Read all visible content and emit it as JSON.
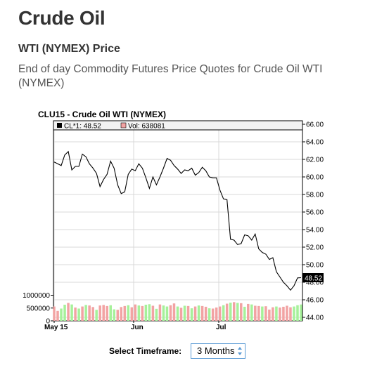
{
  "page": {
    "title": "Crude Oil",
    "subtitle": "WTI (NYMEX) Price",
    "description": "End of day Commodity Futures Price Quotes for Crude Oil WTI (NYMEX)"
  },
  "chart": {
    "title": "CLU15 - Crude Oil WTI (NYMEX)",
    "legend_price_label": "CL*1: 48.52",
    "legend_vol_label": "Vol: 638081",
    "last_price_label": "48.52"
  },
  "controls": {
    "timeframe_label": "Select Timeframe:",
    "timeframe_value": "3 Months"
  },
  "colors": {
    "price_line": "#000000",
    "volume_up": "#a6f19a",
    "volume_down": "#f2a3a3",
    "grid": "#d9d9d9",
    "select_border": "#5b9bd5"
  },
  "chart_data": {
    "type": "line",
    "title": "CLU15 - Crude Oil WTI (NYMEX)",
    "x_tick_labels": [
      "May 15",
      "Jun",
      "Jul"
    ],
    "y_ticks": [
      44.0,
      46.0,
      48.0,
      50.0,
      52.0,
      54.0,
      56.0,
      58.0,
      60.0,
      62.0,
      64.0,
      66.0
    ],
    "y_tick_labels": [
      "44.00",
      "46.00",
      "48.00",
      "50.00",
      "52.00",
      "54.00",
      "56.00",
      "58.00",
      "60.00",
      "62.00",
      "64.00",
      "66.00"
    ],
    "ylim": [
      44,
      66
    ],
    "volume_tick_labels": [
      "1000000",
      "500000",
      "0"
    ],
    "volume_ylim": [
      0,
      1000000
    ],
    "grid": true,
    "series": [
      {
        "values": [
          61.7,
          61.5,
          61.3,
          62.5,
          62.9,
          60.8,
          61.2,
          61.2,
          62.6,
          62.3,
          61.5,
          61.0,
          60.4,
          58.9,
          59.7,
          60.3,
          61.8,
          61.0,
          59.1,
          58.1,
          58.3,
          60.3,
          60.9,
          60.7,
          61.5,
          61.0,
          59.9,
          58.7,
          60.0,
          59.1,
          60.0,
          61.0,
          62.1,
          61.9,
          61.3,
          60.9,
          60.4,
          60.8,
          60.7,
          61.0,
          60.2,
          60.5,
          61.1,
          60.7,
          60.0,
          59.9,
          59.9,
          58.5,
          57.5,
          57.4,
          52.9,
          52.8,
          52.3,
          52.4,
          53.4,
          53.3,
          52.8,
          53.5,
          51.8,
          51.4,
          51.2,
          50.6,
          50.8,
          49.2,
          48.6,
          48.0,
          47.6,
          47.1,
          47.6,
          48.5,
          48.52
        ]
      }
    ],
    "volume": {
      "values": [
        560000,
        390000,
        480000,
        630000,
        700000,
        640000,
        520000,
        480000,
        560000,
        620000,
        600000,
        540000,
        430000,
        600000,
        620000,
        580000,
        610000,
        450000,
        430000,
        540000,
        580000,
        610000,
        530000,
        640000,
        600000,
        580000,
        630000,
        650000,
        590000,
        470000,
        640000,
        600000,
        560000,
        610000,
        680000,
        560000,
        510000,
        590000,
        580000,
        490000,
        560000,
        600000,
        580000,
        550000,
        490000,
        480000,
        520000,
        560000,
        610000,
        670000,
        710000,
        730000,
        700000,
        690000,
        550000,
        660000,
        640000,
        590000,
        580000,
        560000,
        570000,
        440000,
        530000,
        560000,
        520000,
        550000,
        590000,
        530000,
        560000,
        610000,
        638081
      ],
      "up": [
        false,
        false,
        true,
        true,
        false,
        true,
        false,
        true,
        false,
        true,
        false,
        false,
        true,
        false,
        false,
        false,
        true,
        true,
        false,
        false,
        false,
        true,
        false,
        false,
        true,
        false,
        true,
        true,
        false,
        true,
        false,
        true,
        true,
        false,
        false,
        true,
        false,
        true,
        false,
        true,
        false,
        true,
        false,
        false,
        true,
        false,
        false,
        false,
        true,
        false,
        true,
        false,
        true,
        false,
        true,
        false,
        true,
        false,
        false,
        true,
        false,
        false,
        false,
        true,
        false,
        false,
        false,
        false,
        true,
        true,
        true
      ]
    }
  }
}
